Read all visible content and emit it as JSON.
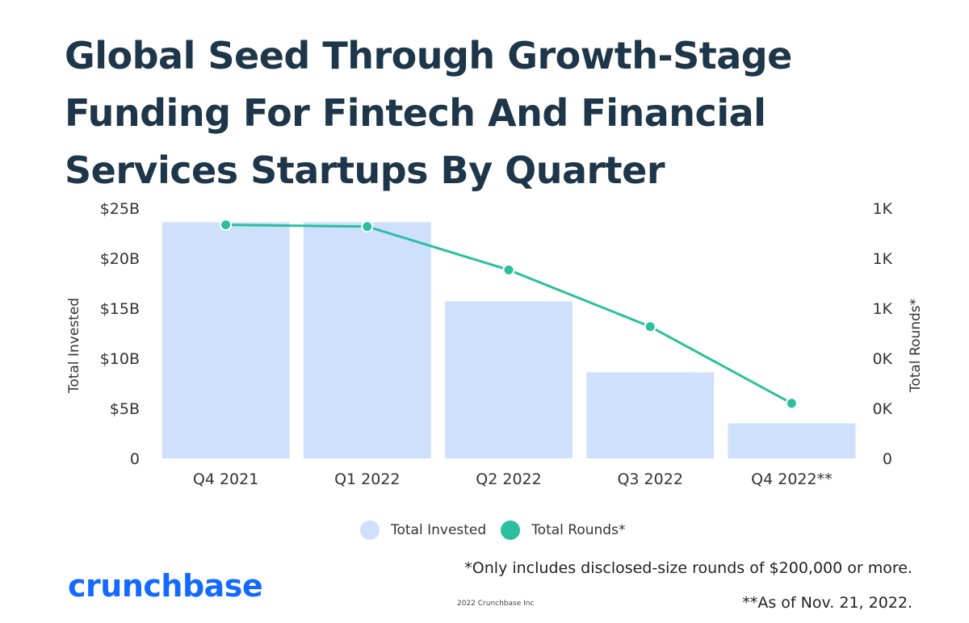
{
  "title_lines": [
    "Global Seed Through Growth-Stage",
    "Funding For Fintech And Financial",
    "Services Startups By Quarter"
  ],
  "footnotes": [
    "*Only includes disclosed-size rounds of $200,000 or more.",
    "**As of Nov. 21, 2022."
  ],
  "brand": {
    "logo_text": "crunchbase",
    "copyright": "2022 Crunchbase Inc"
  },
  "colors": {
    "bar": "#cfe0fc",
    "line": "#2bbf9f",
    "title": "#1d3649",
    "logo": "#146aff"
  },
  "chart_data": {
    "type": "bar",
    "categories": [
      "Q4 2021",
      "Q1 2022",
      "Q2 2022",
      "Q3 2022",
      "Q4 2022**"
    ],
    "series": [
      {
        "name": "Total Invested",
        "type": "bar",
        "axis": "left",
        "values": [
          23.6,
          23.6,
          15.7,
          8.6,
          3.5
        ]
      },
      {
        "name": "Total Rounds*",
        "type": "line",
        "axis": "right",
        "values": [
          1400,
          1390,
          1130,
          790,
          330
        ]
      }
    ],
    "ylabel": "Total Invested",
    "y2label": "Total Rounds*",
    "ylim": [
      0,
      25
    ],
    "y2lim": [
      0,
      1500
    ],
    "yticks": [
      "0",
      "$5B",
      "$10B",
      "$15B",
      "$20B",
      "$25B"
    ],
    "y2ticks": [
      "0",
      "0K",
      "0K",
      "1K",
      "1K",
      "1K"
    ],
    "legend": [
      {
        "label": "Total Invested"
      },
      {
        "label": "Total Rounds*"
      }
    ],
    "legend_position": "bottom-center"
  }
}
